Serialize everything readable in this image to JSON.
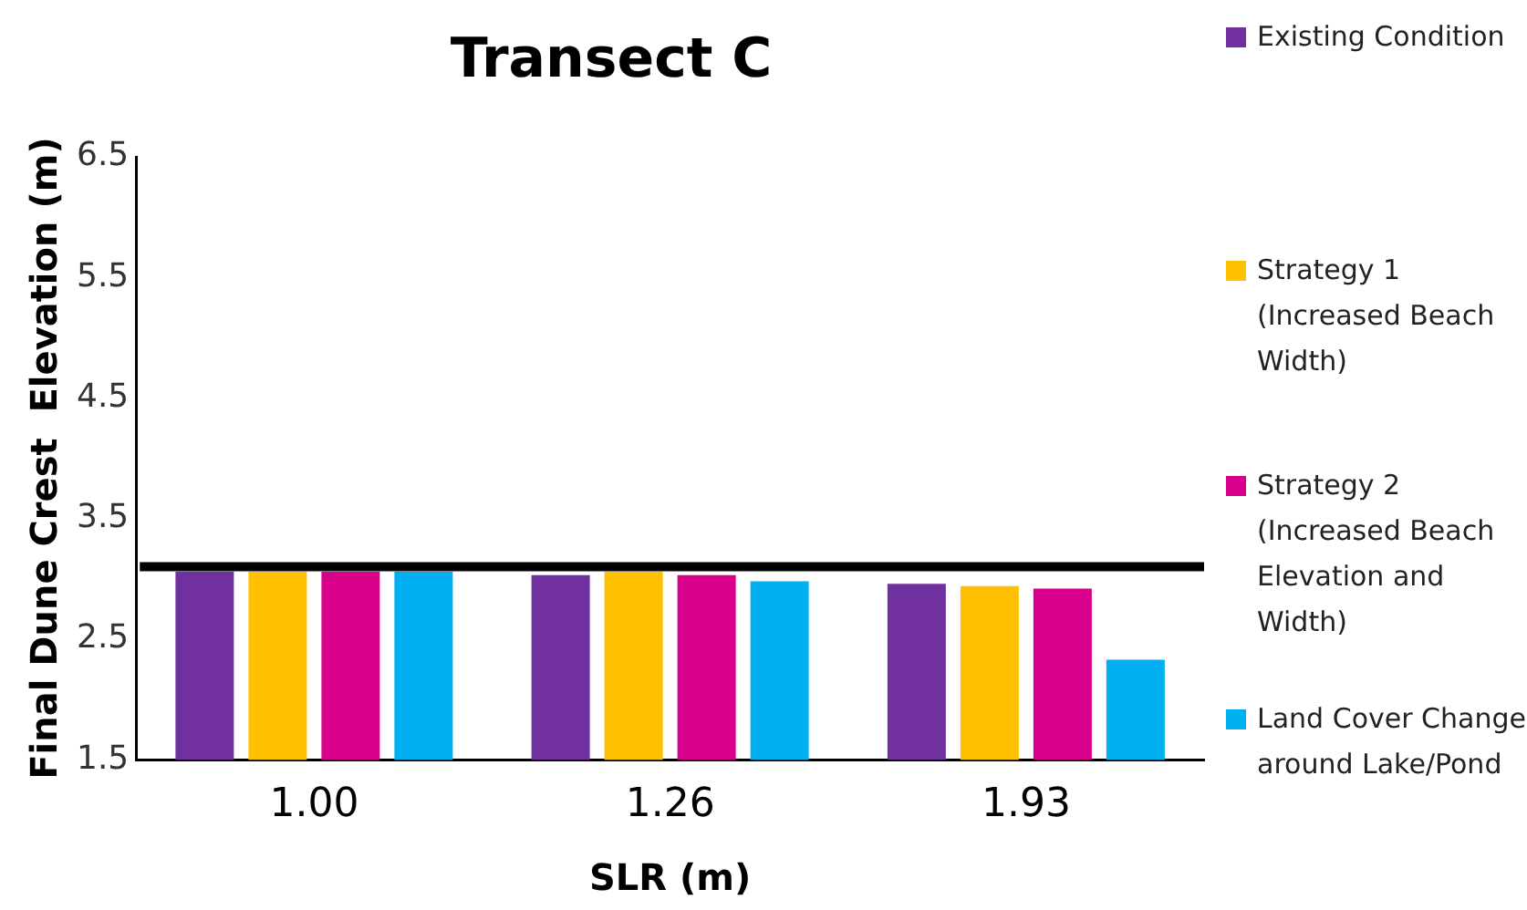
{
  "chart_data": {
    "type": "bar",
    "title": "Transect C",
    "xlabel": "SLR (m)",
    "ylabel": "Final Dune Crest  Elevation (m)",
    "categories": [
      "1.00",
      "1.26",
      "1.93"
    ],
    "series": [
      {
        "name": "Existing Condition",
        "color": "#7030a0",
        "values": [
          3.06,
          3.03,
          2.96
        ]
      },
      {
        "name": "Strategy 1 (Increased Beach Width)",
        "color": "#ffc000",
        "values": [
          3.06,
          3.06,
          2.94
        ]
      },
      {
        "name": "Strategy 2 (Increased Beach Elevation and Width)",
        "color": "#d9008c",
        "values": [
          3.06,
          3.03,
          2.92
        ]
      },
      {
        "name": "Land Cover Change around Lake/Pond",
        "color": "#00b0f0",
        "values": [
          3.06,
          2.98,
          2.33
        ]
      }
    ],
    "ylim": [
      1.5,
      6.5
    ],
    "yticks": [
      1.5,
      2.5,
      3.5,
      4.5,
      5.5,
      6.5
    ],
    "ref_lines": [
      {
        "axis": "y",
        "value": 3.1,
        "color": "#000000"
      }
    ],
    "grid": false,
    "legend": "right"
  }
}
